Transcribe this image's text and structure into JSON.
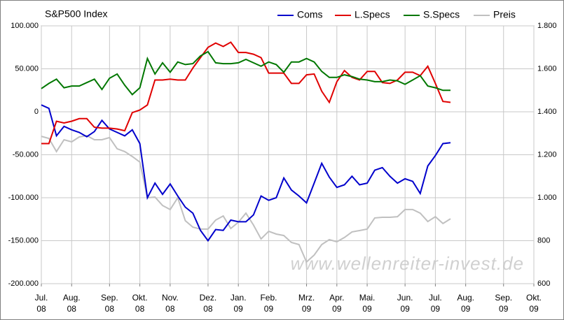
{
  "chart_data": {
    "type": "line",
    "title": "S&P500 Index",
    "annotation": "www.wellenreiter-invest.de",
    "categories": [
      "Jul.\n08",
      null,
      null,
      null,
      "Aug.\n08",
      null,
      null,
      null,
      null,
      "Sep.\n08",
      null,
      null,
      null,
      "Okt.\n08",
      null,
      null,
      null,
      "Nov.\n08",
      null,
      null,
      null,
      null,
      "Dez.\n08",
      null,
      null,
      null,
      "Jan.\n09",
      null,
      null,
      null,
      "Feb.\n09",
      null,
      null,
      null,
      null,
      "Mrz.\n09",
      null,
      null,
      null,
      "Apr.\n09",
      null,
      null,
      null,
      "Mai.\n09",
      null,
      null,
      null,
      null,
      "Jun.\n09",
      null,
      null,
      null,
      "Jul.\n09",
      null,
      null,
      null,
      "Aug.\n09",
      null,
      null,
      null,
      null,
      "Sep.\n09",
      null,
      null,
      null,
      "Okt.\n09"
    ],
    "series": [
      {
        "name": "Coms",
        "color": "#0000cc",
        "values": [
          8000,
          4000,
          -28000,
          -17000,
          -21000,
          -24000,
          -29000,
          -23000,
          -10000,
          -20000,
          -24000,
          -28000,
          -21000,
          -37000,
          -100000,
          -83000,
          -96000,
          -84000,
          -98000,
          -111000,
          -118000,
          -138000,
          -150000,
          -137000,
          -138000,
          -126000,
          -128000,
          -128000,
          -120000,
          -98000,
          -103000,
          -100000,
          -77000,
          -91000,
          -98000,
          -106000,
          -83000,
          -60000,
          -76000,
          -88000,
          -85000,
          -75000,
          -85000,
          -83000,
          -68000,
          -65000,
          -75000,
          -83000,
          -78000,
          -81000,
          -95000,
          -63000,
          -51000,
          -37000,
          -36000,
          null,
          null,
          null,
          null,
          null,
          null,
          null,
          null,
          null,
          null,
          null
        ]
      },
      {
        "name": "L.Specs",
        "color": "#e00000",
        "values": [
          -37000,
          -37000,
          -11000,
          -13000,
          -11000,
          -8000,
          -8000,
          -18000,
          -19000,
          -19000,
          -20000,
          -22000,
          -1000,
          2000,
          8000,
          37000,
          37000,
          38000,
          37000,
          37000,
          51000,
          63000,
          75000,
          80000,
          76000,
          81000,
          69000,
          69000,
          67000,
          63000,
          45000,
          45000,
          45000,
          33000,
          33000,
          43000,
          44000,
          24000,
          11000,
          35000,
          48000,
          40000,
          37000,
          47000,
          47000,
          34000,
          33000,
          37000,
          46000,
          46000,
          42000,
          53000,
          33000,
          12000,
          11000,
          null,
          null,
          null,
          null,
          null,
          null,
          null,
          null,
          null,
          null,
          null
        ]
      },
      {
        "name": "S.Specs",
        "color": "#007700",
        "values": [
          27000,
          33000,
          38000,
          28000,
          30000,
          30000,
          34000,
          38000,
          26000,
          39000,
          44000,
          31000,
          20000,
          28000,
          62000,
          44000,
          57000,
          46000,
          58000,
          55000,
          56000,
          65000,
          70000,
          57000,
          56000,
          56000,
          57000,
          61000,
          57000,
          53000,
          58000,
          55000,
          46000,
          58000,
          58000,
          62000,
          58000,
          47000,
          40000,
          40000,
          43000,
          41000,
          38000,
          37000,
          35000,
          35000,
          37000,
          36000,
          32000,
          37000,
          42000,
          30000,
          28000,
          25000,
          25000,
          null,
          null,
          null,
          null,
          null,
          null,
          null,
          null,
          null,
          null,
          null
        ]
      },
      {
        "name": "Preis",
        "color": "#c0c0c0",
        "axis": "y2",
        "values": [
          1286,
          1276,
          1215,
          1270,
          1260,
          1283,
          1289,
          1270,
          1270,
          1280,
          1228,
          1215,
          1192,
          1166,
          1000,
          1003,
          964,
          945,
          1000,
          893,
          863,
          854,
          854,
          896,
          915,
          857,
          886,
          928,
          873,
          808,
          844,
          831,
          824,
          792,
          782,
          701,
          733,
          782,
          805,
          795,
          815,
          841,
          847,
          854,
          906,
          909,
          909,
          912,
          945,
          945,
          928,
          889,
          912,
          880,
          902,
          null,
          null,
          null,
          null,
          null,
          null,
          null,
          null,
          null,
          null,
          null
        ]
      }
    ],
    "ylim": [
      -200000,
      100000
    ],
    "yticks": [
      {
        "value": -200000,
        "label": "-200.000"
      },
      {
        "value": -150000,
        "label": "-150.000"
      },
      {
        "value": -100000,
        "label": "-100.000"
      },
      {
        "value": -50000,
        "label": "-50.000"
      },
      0,
      {
        "value": 50000,
        "label": "50.000"
      },
      {
        "value": 100000,
        "label": "100.000"
      }
    ],
    "y2lim": [
      600,
      1800
    ],
    "y2ticks": [
      600,
      800,
      {
        "value": 1000,
        "label": "1.000"
      },
      {
        "value": 1200,
        "label": "1.200"
      },
      {
        "value": 1400,
        "label": "1.400"
      },
      {
        "value": 1600,
        "label": "1.600"
      },
      {
        "value": 1800,
        "label": "1.800"
      }
    ],
    "grid": true,
    "legend": "top"
  }
}
